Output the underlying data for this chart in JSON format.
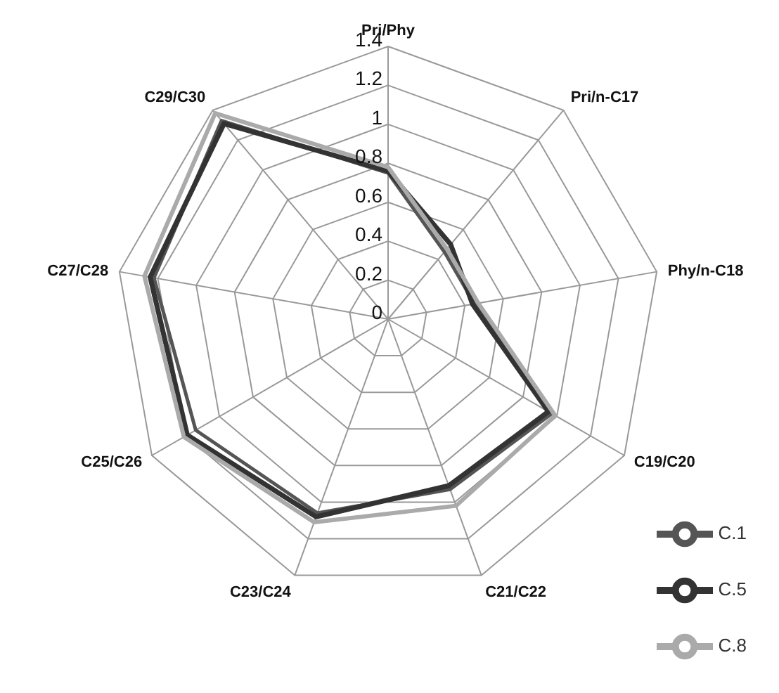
{
  "chart_data": {
    "type": "radar",
    "categories": [
      "Pri/Phy",
      "Pri/n-C17",
      "Phy/n-C18",
      "C19/C20",
      "C21/C22",
      "C23/C24",
      "C25/C26",
      "C27/C28",
      "C29/C30"
    ],
    "series": [
      {
        "name": "C.1",
        "color": "#555555",
        "values": [
          0.75,
          0.45,
          0.45,
          0.97,
          0.93,
          1.06,
          1.14,
          1.22,
          1.33
        ]
      },
      {
        "name": "C.5",
        "color": "#333333",
        "values": [
          0.76,
          0.5,
          0.44,
          0.95,
          0.91,
          1.08,
          1.19,
          1.24,
          1.31
        ]
      },
      {
        "name": "C.8",
        "color": "#aaaaaa",
        "values": [
          0.78,
          0.47,
          0.47,
          0.99,
          1.02,
          1.11,
          1.21,
          1.27,
          1.38
        ]
      }
    ],
    "ylim": [
      0,
      1.4
    ],
    "yticks": [
      0,
      0.2,
      0.4,
      0.6,
      0.8,
      1,
      1.2,
      1.4
    ],
    "grid": true,
    "legend": "bottom right",
    "marker": "none",
    "line_style": "solid"
  }
}
